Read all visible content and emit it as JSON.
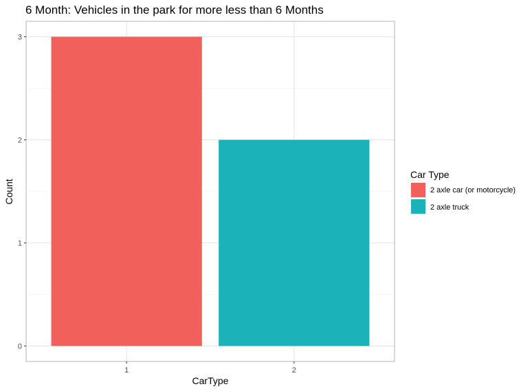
{
  "chart_data": {
    "type": "bar",
    "title": "6 Month: Vehicles in the park for more less than 6 Months",
    "xlabel": "CarType",
    "ylabel": "Count",
    "categories": [
      "1",
      "2"
    ],
    "values": [
      3,
      2
    ],
    "bar_colors": [
      "#F8766D",
      "#00BFC4"
    ],
    "bar_fill_colors": [
      "#f2605c",
      "#1ab3b9"
    ],
    "ylim": [
      -0.15,
      3.15
    ],
    "yticks": [
      0,
      1,
      2,
      3
    ],
    "grid": true,
    "legend": {
      "title": "Car Type",
      "position": "right",
      "entries": [
        {
          "label": "2 axle car (or motorcycle)",
          "color": "#f2605c"
        },
        {
          "label": "2 axle truck",
          "color": "#1ab3b9"
        }
      ]
    }
  }
}
